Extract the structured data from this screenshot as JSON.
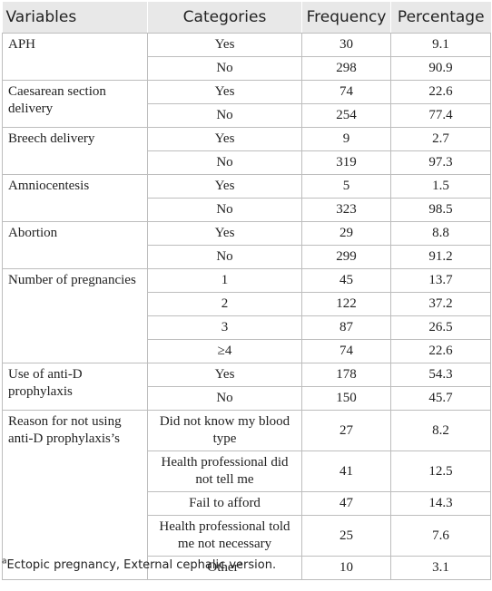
{
  "headers": [
    "Variables",
    "Categories",
    "Frequency",
    "Percentage"
  ],
  "rows": [
    {
      "variable": "APH",
      "category": "Yes",
      "frequency": "30",
      "percentage": "9.1"
    },
    {
      "category": "No",
      "frequency": "298",
      "percentage": "90.9"
    },
    {
      "variable": "Caesarean section delivery",
      "category": "Yes",
      "frequency": "74",
      "percentage": "22.6"
    },
    {
      "category": "No",
      "frequency": "254",
      "percentage": "77.4"
    },
    {
      "variable": "Breech delivery",
      "category": "Yes",
      "frequency": "9",
      "percentage": "2.7"
    },
    {
      "category": "No",
      "frequency": "319",
      "percentage": "97.3"
    },
    {
      "variable": "Amniocentesis",
      "category": "Yes",
      "frequency": "5",
      "percentage": "1.5"
    },
    {
      "category": "No",
      "frequency": "323",
      "percentage": "98.5"
    },
    {
      "variable": "Abortion",
      "category": "Yes",
      "frequency": "29",
      "percentage": "8.8"
    },
    {
      "category": "No",
      "frequency": "299",
      "percentage": "91.2"
    },
    {
      "variable": "Number of pregnancies",
      "category": "1",
      "frequency": "45",
      "percentage": "13.7"
    },
    {
      "category": "2",
      "frequency": "122",
      "percentage": "37.2"
    },
    {
      "category": "3",
      "frequency": "87",
      "percentage": "26.5"
    },
    {
      "category": "≥4",
      "frequency": "74",
      "percentage": "22.6"
    },
    {
      "variable": "Use of anti-D prophylaxis",
      "category": "Yes",
      "frequency": "178",
      "percentage": "54.3"
    },
    {
      "category": "No",
      "frequency": "150",
      "percentage": "45.7"
    },
    {
      "variable": "Reason for not using anti-D prophylaxis’s",
      "category": "Did not know my blood type",
      "frequency": "27",
      "percentage": "8.2"
    },
    {
      "category": "Health professional did not tell me",
      "frequency": "41",
      "percentage": "12.5"
    },
    {
      "category": "Fail to afford",
      "frequency": "47",
      "percentage": "14.3"
    },
    {
      "category": "Health professional told me not necessary",
      "frequency": "25",
      "percentage": "7.6"
    },
    {
      "category": "Other",
      "category_sup": "a",
      "frequency": "10",
      "percentage": "3.1"
    }
  ],
  "footnote": {
    "marker": "a",
    "text": "Ectopic pregnancy, External cephalic version."
  }
}
